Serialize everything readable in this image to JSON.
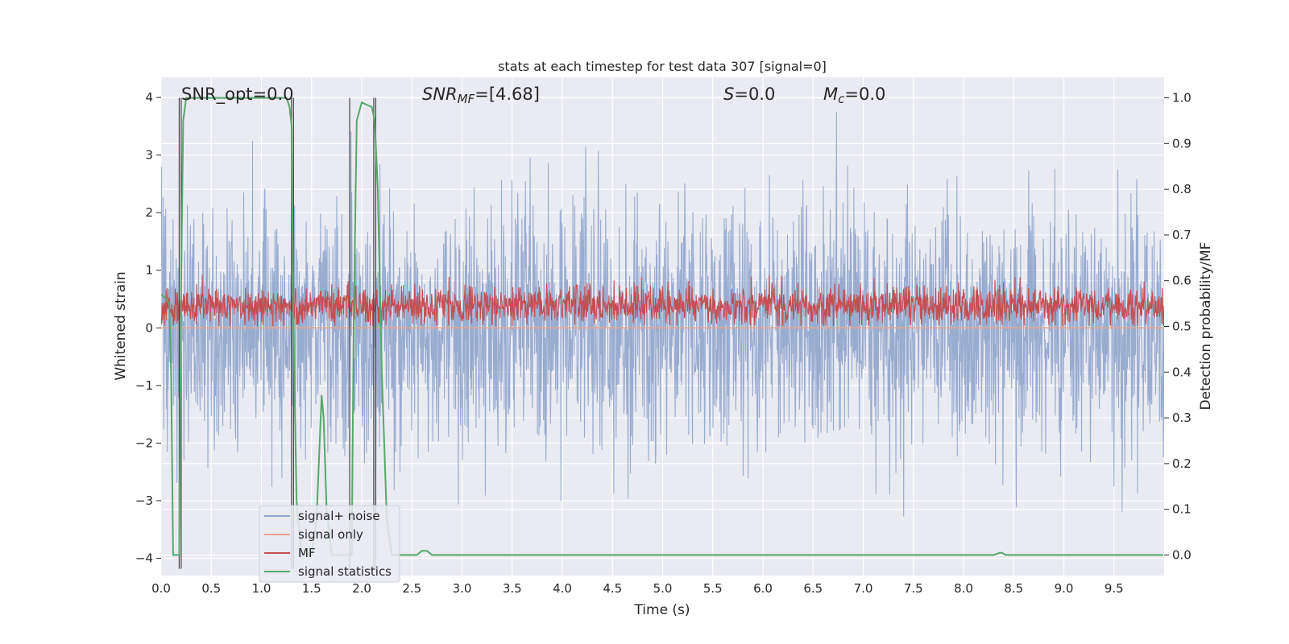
{
  "chart_data": {
    "type": "line",
    "title": "stats at each timestep for test data 307 [signal=0]",
    "xlabel": "Time (s)",
    "ylabel": "Whitened strain",
    "ylabel_right": "Detection probability/MF",
    "xlim": [
      0,
      10
    ],
    "ylim": [
      -4.3,
      4.35
    ],
    "ylim_right": [
      -0.045,
      1.045
    ],
    "x_ticks": [
      "0.0",
      "0.5",
      "1.0",
      "1.5",
      "2.0",
      "2.5",
      "3.0",
      "3.5",
      "4.0",
      "4.5",
      "5.0",
      "5.5",
      "6.0",
      "6.5",
      "7.0",
      "7.5",
      "8.0",
      "8.5",
      "9.0",
      "9.5"
    ],
    "y_ticks": [
      "4",
      "3",
      "2",
      "1",
      "0",
      "−1",
      "−2",
      "−3",
      "−4"
    ],
    "y_ticks_right": [
      "1.0",
      "0.9",
      "0.8",
      "0.7",
      "0.6",
      "0.5",
      "0.4",
      "0.3",
      "0.2",
      "0.1",
      "0.0"
    ],
    "grid": true,
    "legend_position": "lower-left",
    "annotations": {
      "snr_opt": "SNR_opt=0.0",
      "snr_mf_sym": "SNR",
      "snr_mf_sub": "MF",
      "snr_mf_val": "=[4.68]",
      "s_sym": "S",
      "s_val": "=0.0",
      "mc_sym": "M",
      "mc_sub": "c",
      "mc_val": "=0.0"
    },
    "series": [
      {
        "name": "signal+ noise",
        "color": "#8fa5cc",
        "axis": "left",
        "description_range": [
          -3.3,
          3.7
        ],
        "envelope_sigma": 1.05
      },
      {
        "name": "signal only",
        "color": "#e8a58a",
        "axis": "left",
        "values": "flat zero"
      },
      {
        "name": "MF",
        "color": "#c44e52",
        "axis": "right",
        "range": [
          0.5,
          0.62
        ]
      },
      {
        "name": "signal statistics",
        "color": "#55a868",
        "axis": "right",
        "x": [
          0.0,
          0.05,
          0.08,
          0.1,
          0.12,
          0.15,
          0.18,
          0.2,
          0.22,
          0.25,
          0.3,
          0.4,
          0.6,
          0.8,
          1.0,
          1.2,
          1.25,
          1.28,
          1.3,
          1.32,
          1.35,
          1.4,
          1.5,
          1.55,
          1.6,
          1.62,
          1.65,
          1.7,
          1.75,
          1.8,
          1.85,
          1.9,
          1.92,
          1.95,
          2.0,
          2.05,
          2.1,
          2.13,
          2.16,
          2.2,
          2.25,
          2.3,
          2.4,
          2.5,
          2.55,
          2.6,
          2.65,
          2.7,
          3.0,
          4.0,
          5.0,
          6.0,
          7.0,
          8.0,
          8.3,
          8.35,
          8.38,
          8.42,
          8.5,
          9.0,
          9.5,
          9.99
        ],
        "y": [
          0.57,
          0.56,
          0.55,
          0.4,
          0.0,
          0.0,
          0.0,
          0.6,
          0.95,
          1.0,
          1.0,
          1.0,
          1.0,
          1.0,
          1.0,
          1.0,
          1.0,
          0.98,
          0.94,
          0.5,
          0.12,
          0.0,
          0.0,
          0.08,
          0.35,
          0.3,
          0.1,
          0.0,
          0.0,
          0.0,
          0.0,
          0.0,
          0.5,
          0.95,
          0.99,
          0.985,
          0.98,
          0.95,
          0.8,
          0.4,
          0.08,
          0.0,
          0.0,
          0.0,
          0.0,
          0.009,
          0.009,
          0.0,
          0.0,
          0.0,
          0.0,
          0.0,
          0.0,
          0.0,
          0.0,
          0.004,
          0.005,
          0.0,
          0.0,
          0.0,
          0.0,
          0.0
        ]
      }
    ],
    "vlines_x": [
      0.18,
      0.2,
      1.3,
      1.32,
      1.88,
      2.12,
      2.14
    ]
  }
}
